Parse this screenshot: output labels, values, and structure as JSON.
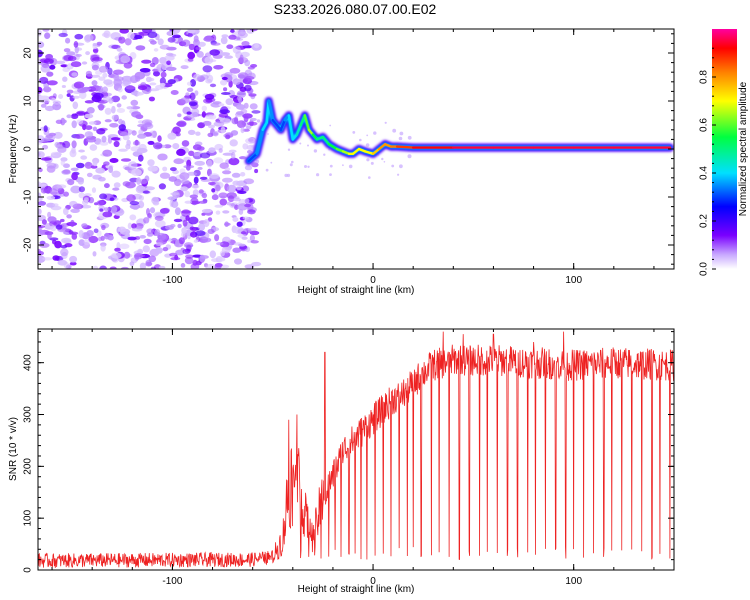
{
  "title": "S233.2026.080.07.00.E02",
  "chart_data": [
    {
      "type": "heatmap",
      "name": "spectrogram",
      "xlabel": "Height of straight line (km)",
      "ylabel": "Frequency (Hz)",
      "xlim": [
        -167,
        150
      ],
      "ylim": [
        -25,
        25
      ],
      "xticks": [
        -100,
        0,
        100
      ],
      "xtick_labels": [
        "-100",
        "0",
        "100"
      ],
      "yticks": [
        -20,
        -10,
        0,
        10,
        20
      ],
      "ytick_labels": [
        "-20",
        "-10",
        "0",
        "10",
        "20"
      ],
      "colorbar": {
        "label": "Normalized spectral amplitude",
        "range": [
          0,
          1
        ],
        "ticks": [
          0.0,
          0.2,
          0.4,
          0.6,
          0.8
        ],
        "tick_labels": [
          "0.0",
          "0.2",
          "0.4",
          "0.6",
          "0.8"
        ],
        "colors": [
          "#ffffff",
          "#c8a8ff",
          "#7a00ff",
          "#0000ff",
          "#00e0ff",
          "#00ff40",
          "#ffff00",
          "#ff8000",
          "#ff0000",
          "#ff00a0"
        ]
      },
      "noise_region_x": [
        -167,
        -58
      ],
      "signal_track": {
        "x": [
          -62,
          -58,
          -55,
          -53,
          -52,
          -50,
          -48,
          -46,
          -44,
          -42,
          -40,
          -38,
          -36,
          -34,
          -32,
          -30,
          -28,
          -25,
          -22,
          -18,
          -15,
          -12,
          -10,
          -7,
          -4,
          0,
          3,
          6,
          9,
          12,
          20,
          40,
          60,
          80,
          100,
          120,
          148
        ],
        "y": [
          -2.5,
          -1,
          4,
          5.5,
          10,
          6,
          5,
          4,
          6,
          7,
          2,
          3,
          5,
          7,
          4,
          3,
          2,
          2.5,
          1,
          0,
          -0.5,
          -1,
          -1,
          0,
          -0.5,
          -1,
          0,
          1,
          0.5,
          0.5,
          0.3,
          0.3,
          0.3,
          0.3,
          0.3,
          0.3,
          0.3
        ],
        "amplitude": [
          0.3,
          0.3,
          0.4,
          0.4,
          0.4,
          0.3,
          0.3,
          0.3,
          0.3,
          0.4,
          0.4,
          0.4,
          0.5,
          0.5,
          0.7,
          0.6,
          0.5,
          0.5,
          0.5,
          0.6,
          0.6,
          0.7,
          0.7,
          0.7,
          0.7,
          0.7,
          0.8,
          0.8,
          0.8,
          0.85,
          0.9,
          0.95,
          0.95,
          0.95,
          0.95,
          0.95,
          0.95
        ]
      }
    },
    {
      "type": "line",
      "name": "snr",
      "xlabel": "Height of straight line (km)",
      "ylabel": "SNR (10 * v/v)",
      "xlim": [
        -167,
        150
      ],
      "ylim": [
        0,
        465
      ],
      "xticks": [
        -100,
        0,
        100
      ],
      "xtick_labels": [
        "-100",
        "0",
        "100"
      ],
      "yticks": [
        0,
        100,
        200,
        300,
        400
      ],
      "ytick_labels": [
        "0",
        "100",
        "200",
        "300",
        "400"
      ],
      "color": "#ee2222",
      "trend": {
        "x": [
          -167,
          -60,
          -50,
          -45,
          -42,
          -38,
          -35,
          -30,
          -25,
          -20,
          -15,
          -10,
          -5,
          0,
          5,
          10,
          15,
          20,
          25,
          30,
          40,
          60,
          80,
          100,
          120,
          150
        ],
        "y": [
          18,
          20,
          25,
          60,
          160,
          200,
          120,
          60,
          140,
          180,
          230,
          250,
          270,
          290,
          310,
          330,
          340,
          360,
          380,
          395,
          405,
          405,
          400,
          395,
          400,
          395
        ]
      },
      "noise_amplitude": 14,
      "dropouts_x": [
        -36,
        -32,
        -29,
        -26,
        -22,
        -19,
        -16,
        -12,
        -9,
        -6,
        -3,
        1,
        5,
        9,
        13,
        17,
        20,
        24,
        29,
        33,
        38,
        43,
        48,
        53,
        57,
        62,
        67,
        72,
        77,
        81,
        86,
        91,
        96,
        100,
        105,
        110,
        115,
        119,
        124,
        129,
        134,
        139,
        143,
        148
      ],
      "spikes": [
        {
          "x": -42,
          "y": 290
        },
        {
          "x": -38,
          "y": 300
        },
        {
          "x": -24,
          "y": 420
        },
        {
          "x": 35,
          "y": 460
        },
        {
          "x": 45,
          "y": 455
        },
        {
          "x": 60,
          "y": 455
        },
        {
          "x": 80,
          "y": 440
        },
        {
          "x": 95,
          "y": 460
        }
      ]
    }
  ]
}
